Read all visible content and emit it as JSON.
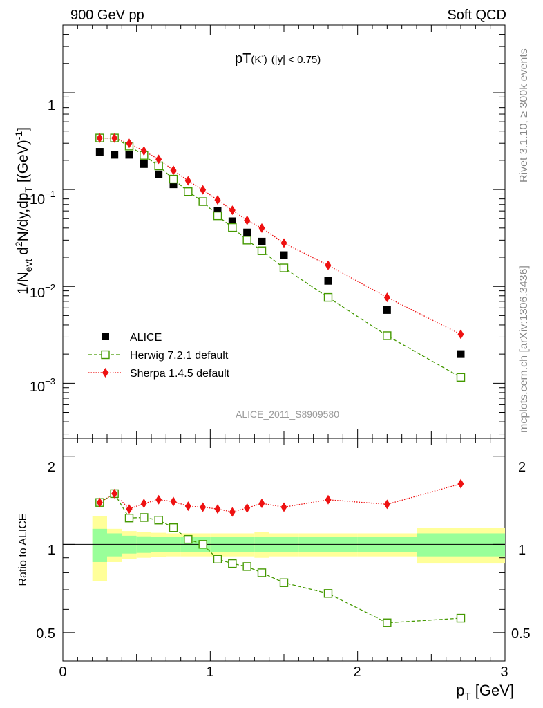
{
  "chart_data": {
    "type": "scatter",
    "header_left": "900 GeV pp",
    "header_right": "Soft QCD",
    "title_main": "pT",
    "title_paren": "(K",
    "title_sup": "-",
    "title_close": ")",
    "title_cut": "(|y| < 0.75)",
    "ylabel": "1/N_evt d²N/dy,dp_T [(GeV)⁻¹]",
    "ylabel_ratio": "Ratio to ALICE",
    "xlabel": "p_T [GeV]",
    "analysis_id": "ALICE_2011_S8909580",
    "side_text_top": "Rivet 3.1.10, ≥ 300k events",
    "side_text_bottom": "mcplots.cern.ch [arXiv:1306.3436]",
    "x_ticks": [
      "0",
      "1",
      "2",
      "3"
    ],
    "y_ticks_main": [
      "1",
      "10^{-1}",
      "10^{-2}",
      "10^{-3}"
    ],
    "y_ticks_ratio": [
      "2",
      "1",
      "0.5"
    ],
    "xlim": [
      0,
      3
    ],
    "ylim_main_log": [
      0.00027,
      5.0
    ],
    "ylim_ratio_log": [
      0.4,
      2.3
    ],
    "x": [
      0.25,
      0.35,
      0.45,
      0.55,
      0.65,
      0.75,
      0.85,
      0.95,
      1.05,
      1.15,
      1.25,
      1.35,
      1.5,
      1.8,
      2.2,
      2.7
    ],
    "bin_edges": [
      0.2,
      0.3,
      0.4,
      0.5,
      0.6,
      0.7,
      0.8,
      0.9,
      1.0,
      1.1,
      1.2,
      1.3,
      1.4,
      1.6,
      2.0,
      2.4,
      3.0
    ],
    "band_inner": [
      0.13,
      0.09,
      0.07,
      0.065,
      0.06,
      0.06,
      0.06,
      0.06,
      0.06,
      0.06,
      0.06,
      0.06,
      0.06,
      0.06,
      0.06,
      0.09
    ],
    "band_outer": [
      0.25,
      0.13,
      0.11,
      0.1,
      0.095,
      0.09,
      0.09,
      0.09,
      0.09,
      0.09,
      0.09,
      0.1,
      0.09,
      0.09,
      0.09,
      0.14
    ],
    "series": [
      {
        "name": "ALICE",
        "color": "#000000",
        "marker": "square-filled",
        "values": [
          0.245,
          0.228,
          0.228,
          0.183,
          0.143,
          0.113,
          0.093,
          0.075,
          0.06,
          0.047,
          0.036,
          0.029,
          0.021,
          0.0114,
          0.0057,
          0.002
        ]
      },
      {
        "name": "Herwig 7.2.1 default",
        "color": "#449900",
        "marker": "square-open",
        "line": "dashed",
        "values": [
          0.34,
          0.34,
          0.28,
          0.225,
          0.175,
          0.128,
          0.095,
          0.075,
          0.0535,
          0.0405,
          0.03,
          0.0233,
          0.0155,
          0.0077,
          0.0031,
          0.00115
        ],
        "ratio": [
          1.39,
          1.49,
          1.23,
          1.235,
          1.21,
          1.14,
          1.04,
          1.0,
          0.89,
          0.86,
          0.84,
          0.8,
          0.74,
          0.68,
          0.54,
          0.56
        ]
      },
      {
        "name": "Sherpa 1.4.5 default",
        "color": "#ee1111",
        "marker": "diamond-filled",
        "line": "dotted",
        "values": [
          0.34,
          0.34,
          0.3,
          0.25,
          0.205,
          0.158,
          0.123,
          0.099,
          0.078,
          0.061,
          0.048,
          0.04,
          0.028,
          0.0165,
          0.0077,
          0.0032
        ],
        "ratio": [
          1.39,
          1.49,
          1.32,
          1.38,
          1.42,
          1.4,
          1.35,
          1.34,
          1.32,
          1.29,
          1.33,
          1.38,
          1.34,
          1.42,
          1.37,
          1.61
        ]
      }
    ]
  }
}
